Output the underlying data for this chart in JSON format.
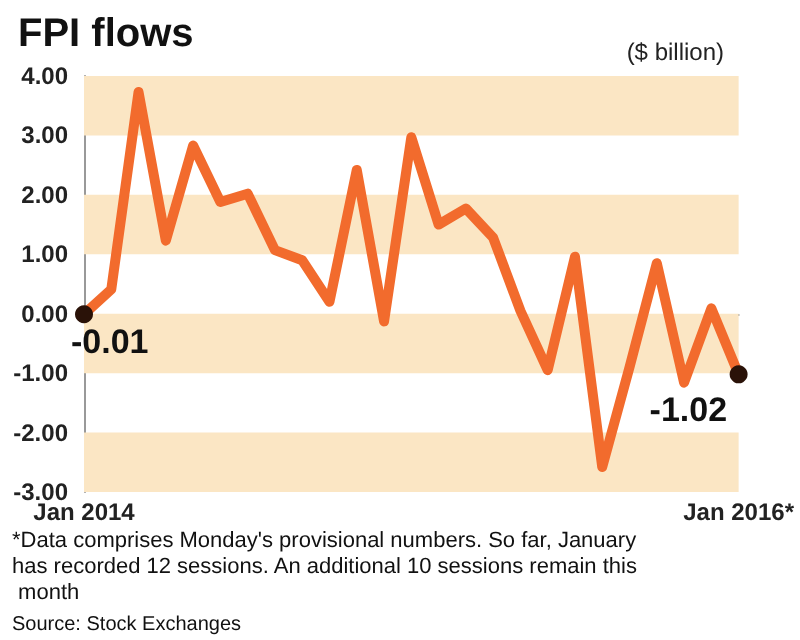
{
  "chart_data": {
    "type": "line",
    "title": "FPI flows",
    "ylabel": "($ billion)",
    "categories": [
      "Jan 2014",
      null,
      null,
      null,
      null,
      null,
      null,
      null,
      null,
      null,
      null,
      null,
      null,
      null,
      null,
      null,
      null,
      null,
      null,
      null,
      null,
      null,
      null,
      null,
      "Jan 2016*"
    ],
    "series": [
      {
        "color": "#f26b2d",
        "values": [
          -0.01,
          0.41,
          3.73,
          1.23,
          2.83,
          1.88,
          2.02,
          1.07,
          0.9,
          0.2,
          2.42,
          -0.13,
          2.97,
          1.5,
          1.77,
          1.28,
          0.05,
          -0.95,
          0.96,
          -2.58,
          -0.9,
          0.85,
          -1.16,
          0.09,
          -1.02
        ],
        "value_labels": [
          "-0.01",
          null,
          null,
          null,
          null,
          null,
          null,
          null,
          null,
          null,
          null,
          null,
          null,
          null,
          null,
          null,
          null,
          null,
          null,
          null,
          null,
          null,
          null,
          null,
          "-1.02"
        ]
      }
    ],
    "ylim": [
      -3,
      4
    ],
    "yticks": [
      {
        "value": -3,
        "label": "-3.00"
      },
      {
        "value": -2,
        "label": "-2.00"
      },
      {
        "value": -1,
        "label": "-1.00"
      },
      {
        "value": 0,
        "label": "0.00"
      },
      {
        "value": 1,
        "label": "1.00"
      },
      {
        "value": 2,
        "label": "2.00"
      },
      {
        "value": 3,
        "label": "3.00"
      },
      {
        "value": 4,
        "label": "4.00"
      }
    ],
    "bands": [
      {
        "axis": "y",
        "from": 3,
        "to": 4,
        "color": "#fbe6c4"
      },
      {
        "axis": "y",
        "from": 1,
        "to": 2,
        "color": "#fbe6c4"
      },
      {
        "axis": "y",
        "from": -1,
        "to": 0,
        "color": "#fbe6c4"
      },
      {
        "axis": "y",
        "from": -3,
        "to": -2,
        "color": "#fbe6c4"
      }
    ],
    "annotations": [
      "*Data comprises Monday's provisional numbers. So far, January has recorded 12 sessions. An additional 10 sessions remain this month",
      "Source: Stock Exchanges"
    ]
  }
}
